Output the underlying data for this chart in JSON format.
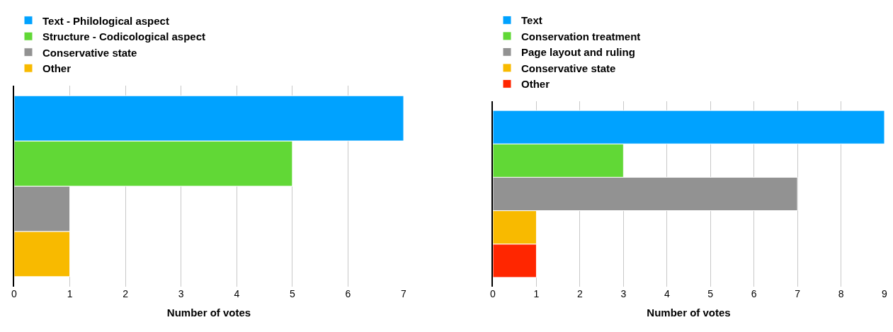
{
  "chart_data": [
    {
      "type": "bar",
      "orientation": "horizontal",
      "xlabel": "Number of votes",
      "categories": [
        null
      ],
      "series": [
        {
          "name": "Text - Philological aspect",
          "color": "#00a2ff",
          "values": [
            7
          ]
        },
        {
          "name": "Structure - Codicological aspect",
          "color": "#61d836",
          "values": [
            5
          ]
        },
        {
          "name": "Conservative state",
          "color": "#929292",
          "values": [
            1
          ]
        },
        {
          "name": "Other",
          "color": "#f8ba00",
          "values": [
            1
          ]
        }
      ],
      "xlim": [
        0,
        7
      ],
      "xticks": [
        0,
        1,
        2,
        3,
        4,
        5,
        6,
        7
      ],
      "grid": "x",
      "legend": "top left"
    },
    {
      "type": "bar",
      "orientation": "horizontal",
      "xlabel": "Number of votes",
      "categories": [
        null
      ],
      "series": [
        {
          "name": "Text",
          "color": "#00a2ff",
          "values": [
            9
          ]
        },
        {
          "name": "Conservation treatment",
          "color": "#61d836",
          "values": [
            3
          ]
        },
        {
          "name": "Page layout and ruling",
          "color": "#929292",
          "values": [
            7
          ]
        },
        {
          "name": "Conservative state",
          "color": "#f8ba00",
          "values": [
            1
          ]
        },
        {
          "name": "Other",
          "color": "#ff2600",
          "values": [
            1
          ]
        }
      ],
      "xlim": [
        0,
        9
      ],
      "xticks": [
        0,
        1,
        2,
        3,
        4,
        5,
        6,
        7,
        8,
        9
      ],
      "grid": "x",
      "legend": "top left"
    }
  ]
}
